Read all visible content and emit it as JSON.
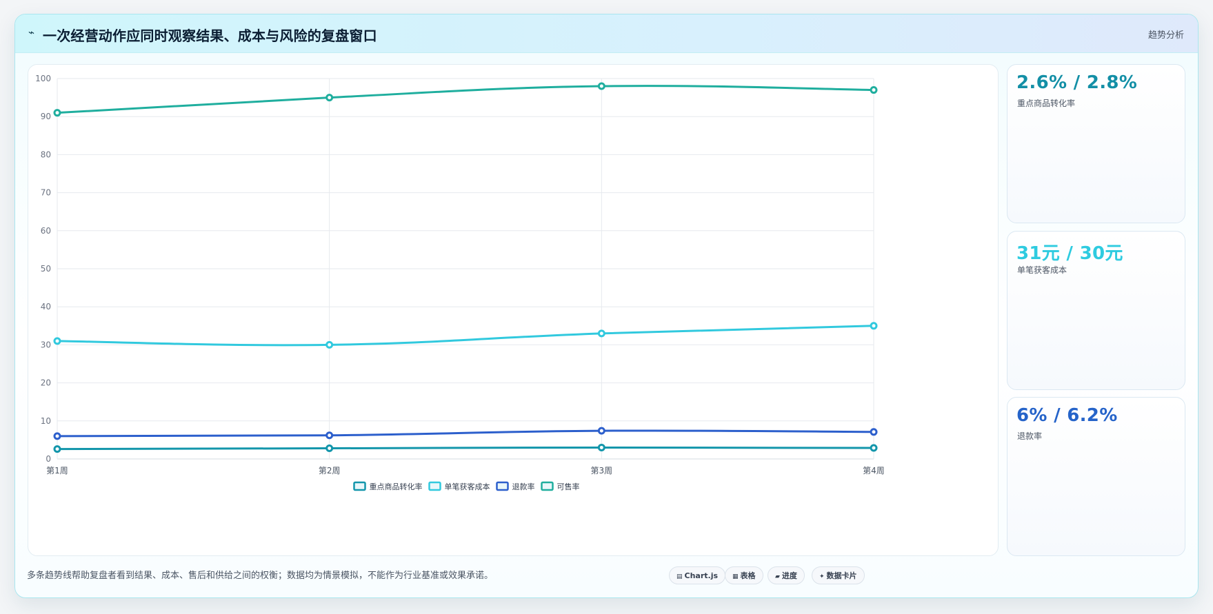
{
  "header": {
    "icon": "⌁",
    "title": "一次经营动作应同时观察结果、成本与风险的复盘窗口",
    "tag": "趋势分析"
  },
  "chart_data": {
    "type": "line",
    "categories": [
      "第1周",
      "第2周",
      "第3周",
      "第4周"
    ],
    "ylim": [
      0,
      100
    ],
    "yticks": [
      0,
      10,
      20,
      30,
      40,
      50,
      60,
      70,
      80,
      90,
      100
    ],
    "grid": true,
    "legend_position": "bottom",
    "series": [
      {
        "name": "重点商品转化率",
        "color": "#1396ab",
        "values": [
          2.6,
          2.8,
          3.0,
          2.9
        ]
      },
      {
        "name": "单笔获客成本",
        "color": "#31c9de",
        "values": [
          31,
          30,
          33,
          35
        ]
      },
      {
        "name": "退款率",
        "color": "#2c5fcc",
        "values": [
          6,
          6.2,
          7.4,
          7.1
        ]
      },
      {
        "name": "可售率",
        "color": "#1fae9e",
        "values": [
          91,
          95,
          98,
          97
        ]
      }
    ]
  },
  "kpis": [
    {
      "value": "2.6% / 2.8%",
      "label": "重点商品转化率",
      "color": "#138fa6"
    },
    {
      "value": "31元 / 30元",
      "label": "单笔获客成本",
      "color": "#2ecbe0"
    },
    {
      "value": "6% / 6.2%",
      "label": "退款率",
      "color": "#2563c9"
    }
  ],
  "footer": {
    "note": "多条趋势线帮助复盘者看到结果、成本、售后和供给之间的权衡；数据均为情景模拟，不能作为行业基准或效果承诺。",
    "chips": [
      {
        "icon": "▤",
        "icon_name": "chart-icon",
        "label": "Chart.js"
      },
      {
        "icon": "▦",
        "icon_name": "table-icon",
        "label": "表格"
      },
      {
        "icon": "▰",
        "icon_name": "progress-icon",
        "label": "进度"
      },
      {
        "icon": "✦",
        "icon_name": "card-icon",
        "label": "数据卡片"
      }
    ]
  }
}
